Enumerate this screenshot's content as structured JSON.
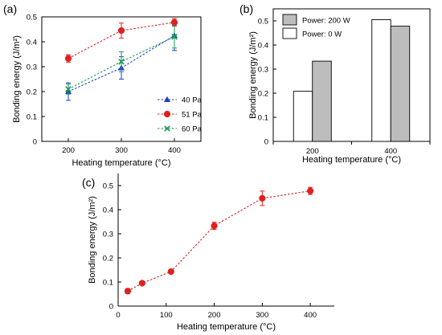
{
  "chart_data": [
    {
      "panel": "(a)",
      "type": "line",
      "xlabel": "Heating temperature (°C)",
      "ylabel": "Bonding energy (J/m²)",
      "xlim": [
        150,
        450
      ],
      "ylim": [
        0,
        0.5
      ],
      "xticks": [
        200,
        300,
        400
      ],
      "yticks": [
        0,
        0.1,
        0.2,
        0.3,
        0.4,
        0.5
      ],
      "yticklabels": [
        "0",
        "0.1",
        "0.2",
        "0.3",
        "0.4",
        "0.5"
      ],
      "grid": false,
      "legend": "bottom-right",
      "series": [
        {
          "name": "40 Pa",
          "color": "#1f3fd1",
          "marker": "triangle",
          "x": [
            200,
            300,
            400
          ],
          "y": [
            0.2,
            0.295,
            0.425
          ],
          "err": [
            0.035,
            0.045,
            0.06
          ]
        },
        {
          "name": "51 Pa",
          "color": "#e02020",
          "marker": "circle",
          "x": [
            200,
            300,
            400
          ],
          "y": [
            0.333,
            0.445,
            0.478
          ],
          "err": [
            0.015,
            0.03,
            0.015
          ]
        },
        {
          "name": "60 Pa",
          "color": "#1a9a5a",
          "marker": "cross",
          "x": [
            200,
            300,
            400
          ],
          "y": [
            0.21,
            0.32,
            0.42
          ],
          "err": [
            0.02,
            0.04,
            0.045
          ]
        }
      ]
    },
    {
      "panel": "(b)",
      "type": "bar",
      "xlabel": "Heating temperature (°C)",
      "ylabel": "Bonding energy (J/m²)",
      "categories": [
        "200",
        "400"
      ],
      "ylim": [
        0,
        0.55
      ],
      "yticks": [
        0,
        0.1,
        0.2,
        0.3,
        0.4,
        0.5
      ],
      "yticklabels": [
        "0",
        "0.1",
        "0.2",
        "0.3",
        "0.4",
        "0.5"
      ],
      "grid": false,
      "legend": "top-left",
      "series": [
        {
          "name": "Power:    0 W",
          "color": "#ffffff",
          "values": [
            0.208,
            0.505
          ]
        },
        {
          "name": "Power: 200 W",
          "color": "#bdbdbd",
          "values": [
            0.333,
            0.478
          ]
        }
      ]
    },
    {
      "panel": "(c)",
      "type": "line",
      "xlabel": "Heating temperature (°C)",
      "ylabel": "Bonding energy (J/m²)",
      "xlim": [
        0,
        450
      ],
      "ylim": [
        0,
        0.55
      ],
      "xticks": [
        0,
        100,
        200,
        300,
        400
      ],
      "yticks": [
        0,
        0.1,
        0.2,
        0.3,
        0.4,
        0.5
      ],
      "yticklabels": [
        "0",
        "0.1",
        "0.2",
        "0.3",
        "0.4",
        "0.5"
      ],
      "grid": false,
      "series": [
        {
          "name": "",
          "color": "#e02020",
          "marker": "circle",
          "x": [
            20,
            50,
            110,
            200,
            300,
            400
          ],
          "y": [
            0.062,
            0.095,
            0.143,
            0.333,
            0.447,
            0.478
          ],
          "err": [
            0.01,
            0.005,
            0.005,
            0.015,
            0.03,
            0.015
          ]
        }
      ]
    }
  ]
}
